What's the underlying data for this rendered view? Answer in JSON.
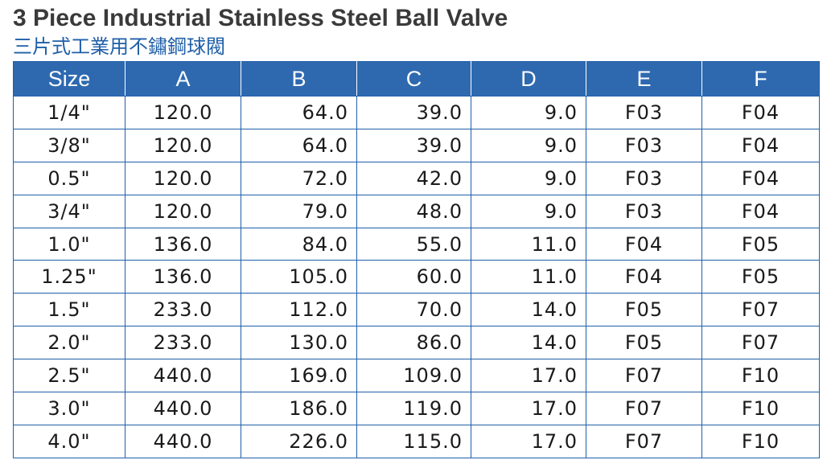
{
  "title": "3 Piece Industrial Stainless Steel Ball Valve",
  "subtitle": "三片式工業用不鏽鋼球閥",
  "table": {
    "headers": [
      "Size",
      "A",
      "B",
      "C",
      "D",
      "E",
      "F"
    ],
    "rows": [
      [
        "1/4\"",
        "120.0",
        "64.0",
        "39.0",
        "9.0",
        "F03",
        "F04"
      ],
      [
        "3/8\"",
        "120.0",
        "64.0",
        "39.0",
        "9.0",
        "F03",
        "F04"
      ],
      [
        "0.5\"",
        "120.0",
        "72.0",
        "42.0",
        "9.0",
        "F03",
        "F04"
      ],
      [
        "3/4\"",
        "120.0",
        "79.0",
        "48.0",
        "9.0",
        "F03",
        "F04"
      ],
      [
        "1.0\"",
        "136.0",
        "84.0",
        "55.0",
        "11.0",
        "F04",
        "F05"
      ],
      [
        "1.25\"",
        "136.0",
        "105.0",
        "60.0",
        "11.0",
        "F04",
        "F05"
      ],
      [
        "1.5\"",
        "233.0",
        "112.0",
        "70.0",
        "14.0",
        "F05",
        "F07"
      ],
      [
        "2.0\"",
        "233.0",
        "130.0",
        "86.0",
        "14.0",
        "F05",
        "F07"
      ],
      [
        "2.5\"",
        "440.0",
        "169.0",
        "109.0",
        "17.0",
        "F07",
        "F10"
      ],
      [
        "3.0\"",
        "440.0",
        "186.0",
        "119.0",
        "17.0",
        "F07",
        "F10"
      ],
      [
        "4.0\"",
        "440.0",
        "226.0",
        "115.0",
        "17.0",
        "F07",
        "F10"
      ]
    ]
  },
  "colors": {
    "header_bg": "#2e69b0",
    "border": "#1f5fa8",
    "title_text": "#3a3a3a",
    "subtitle_text": "#1f5fa8"
  }
}
